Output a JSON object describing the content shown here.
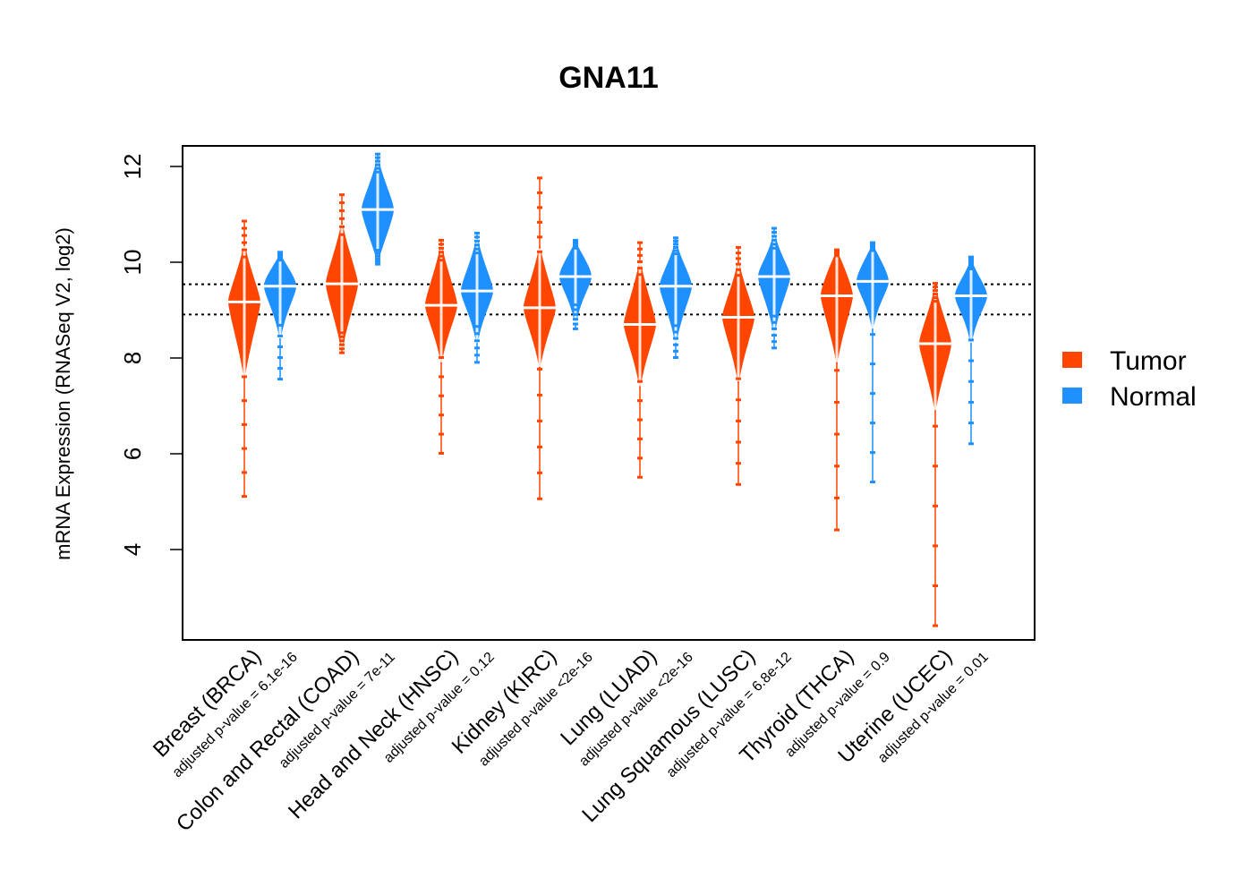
{
  "chart_data": {
    "type": "beanplot",
    "title": "GNA11",
    "xlabel": "",
    "ylabel": "mRNA Expression (RNASeq V2, log2)",
    "ylim": [
      2.25,
      12.45
    ],
    "yticks": [
      4,
      6,
      8,
      10,
      12
    ],
    "grid": false,
    "reference_lines": [
      9.54,
      8.91
    ],
    "legend": {
      "position": "right",
      "entries": [
        {
          "name": "Tumor",
          "color": "#FF4500"
        },
        {
          "name": "Normal",
          "color": "#1E90FF"
        }
      ]
    },
    "categories": [
      {
        "label": "Breast (BRCA)",
        "pvalue_label": "adjusted p-value = 6.1e-16",
        "tumor": {
          "median": 9.17,
          "min": 5.1,
          "max": 10.85,
          "body_low": 8.1,
          "body_high": 9.95
        },
        "normal": {
          "median": 9.5,
          "min": 7.55,
          "max": 10.2,
          "body_low": 8.9,
          "body_high": 10.0
        }
      },
      {
        "label": "Colon and Rectal (COAD)",
        "pvalue_label": "adjusted p-value = 7e-11",
        "tumor": {
          "median": 9.55,
          "min": 8.1,
          "max": 11.4,
          "body_low": 8.6,
          "body_high": 10.4
        },
        "normal": {
          "median": 11.1,
          "min": 9.95,
          "max": 12.25,
          "body_low": 10.3,
          "body_high": 11.8
        }
      },
      {
        "label": "Head and Neck (HNSC)",
        "pvalue_label": "adjusted p-value = 0.12",
        "tumor": {
          "median": 9.1,
          "min": 6.0,
          "max": 10.45,
          "body_low": 8.4,
          "body_high": 9.95
        },
        "normal": {
          "median": 9.4,
          "min": 7.9,
          "max": 10.6,
          "body_low": 8.8,
          "body_high": 10.1
        }
      },
      {
        "label": "Kidney (KIRC)",
        "pvalue_label": "adjusted p-value <2e-16",
        "tumor": {
          "median": 9.05,
          "min": 5.05,
          "max": 11.75,
          "body_low": 8.3,
          "body_high": 9.9
        },
        "normal": {
          "median": 9.7,
          "min": 8.6,
          "max": 10.45,
          "body_low": 9.2,
          "body_high": 10.25
        }
      },
      {
        "label": "Lung (LUAD)",
        "pvalue_label": "adjusted p-value <2e-16",
        "tumor": {
          "median": 8.7,
          "min": 5.5,
          "max": 10.4,
          "body_low": 7.9,
          "body_high": 9.6
        },
        "normal": {
          "median": 9.5,
          "min": 8.0,
          "max": 10.5,
          "body_low": 8.8,
          "body_high": 10.1
        }
      },
      {
        "label": "Lung Squamous (LUSC)",
        "pvalue_label": "adjusted p-value = 6.8e-12",
        "tumor": {
          "median": 8.85,
          "min": 5.35,
          "max": 10.3,
          "body_low": 8.0,
          "body_high": 9.6
        },
        "normal": {
          "median": 9.7,
          "min": 8.2,
          "max": 10.7,
          "body_low": 9.0,
          "body_high": 10.2
        }
      },
      {
        "label": "Thyroid (THCA)",
        "pvalue_label": "adjusted p-value = 0.9",
        "tumor": {
          "median": 9.3,
          "min": 4.4,
          "max": 10.25,
          "body_low": 8.4,
          "body_high": 10.1
        },
        "normal": {
          "median": 9.6,
          "min": 5.4,
          "max": 10.4,
          "body_low": 9.1,
          "body_high": 10.2
        }
      },
      {
        "label": "Uterine (UCEC)",
        "pvalue_label": "adjusted p-value = 0.01",
        "tumor": {
          "median": 8.3,
          "min": 2.4,
          "max": 9.55,
          "body_low": 7.4,
          "body_high": 9.1
        },
        "normal": {
          "median": 9.3,
          "min": 6.2,
          "max": 10.1,
          "body_low": 8.8,
          "body_high": 9.8
        }
      }
    ]
  }
}
